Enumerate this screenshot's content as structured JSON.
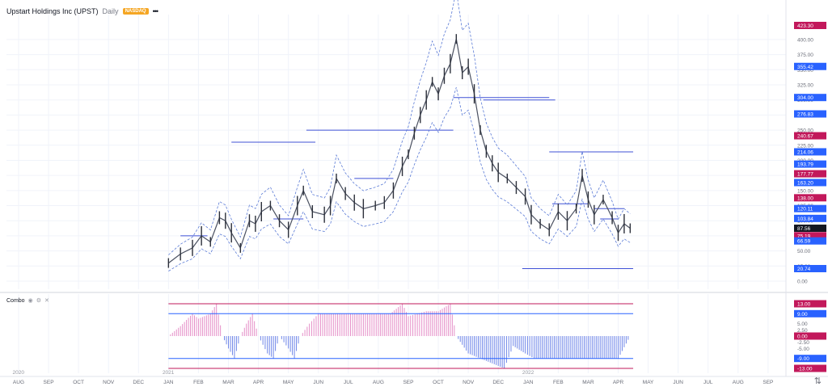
{
  "header": {
    "title": "Upstart Holdings Inc (UPST)",
    "timeframe": "Daily",
    "exchange": "NASDAQ",
    "more": "•••"
  },
  "indicator": {
    "name": "Combo",
    "icons": [
      "eye-icon",
      "gear-icon",
      "close-icon"
    ]
  },
  "chart_data": {
    "type": "line",
    "price_axis_ticks": [
      "400.00",
      "375.00",
      "350.00",
      "325.00",
      "300.00",
      "275.00",
      "250.00",
      "225.00",
      "200.00",
      "175.00",
      "150.00",
      "125.00",
      "100.00",
      "75.00",
      "50.00",
      "25.00",
      "0.00"
    ],
    "price_tick_values": [
      400,
      375,
      350,
      325,
      300,
      275,
      250,
      225,
      200,
      175,
      150,
      125,
      100,
      75,
      50,
      25,
      0
    ],
    "price_ylim": [
      0,
      423.3
    ],
    "price_badges": [
      {
        "label": "423.30",
        "value": 423.3,
        "color": "#c2185b"
      },
      {
        "label": "355.42",
        "value": 355.42,
        "color": "#2962ff"
      },
      {
        "label": "304.00",
        "value": 304.0,
        "color": "#2962ff"
      },
      {
        "label": "276.83",
        "value": 276.83,
        "color": "#2962ff"
      },
      {
        "label": "240.67",
        "value": 240.67,
        "color": "#c2185b"
      },
      {
        "label": "214.06",
        "value": 214.06,
        "color": "#2962ff"
      },
      {
        "label": "193.79",
        "value": 193.79,
        "color": "#2962ff"
      },
      {
        "label": "177.77",
        "value": 177.77,
        "color": "#c2185b"
      },
      {
        "label": "163.20",
        "value": 163.2,
        "color": "#2962ff"
      },
      {
        "label": "138.00",
        "value": 138.0,
        "color": "#c2185b"
      },
      {
        "label": "120.11",
        "value": 120.11,
        "color": "#2962ff"
      },
      {
        "label": "103.84",
        "value": 103.84,
        "color": "#2962ff"
      },
      {
        "label": "87.56",
        "value": 87.56,
        "color": "#131722"
      },
      {
        "label": "75.19",
        "value": 75.19,
        "color": "#c2185b"
      },
      {
        "label": "66.59",
        "value": 66.59,
        "color": "#2962ff"
      },
      {
        "label": "20.74",
        "value": 20.74,
        "color": "#2962ff"
      }
    ],
    "indicator_axis_ticks": [
      "13.00",
      "9.00",
      "5.00",
      "2.50",
      "0.00",
      "-2.50",
      "-5.00",
      "-9.00",
      "-13.00"
    ],
    "indicator_tick_values": [
      13,
      9,
      5,
      2.5,
      0,
      -2.5,
      -5,
      -9,
      -13
    ],
    "indicator_ylim": [
      -13,
      13
    ],
    "indicator_badges": [
      {
        "label": "13.00",
        "value": 13,
        "color": "#c2185b"
      },
      {
        "label": "9.00",
        "value": 9,
        "color": "#2962ff"
      },
      {
        "label": "0.00",
        "value": 0,
        "color": "#c2185b"
      },
      {
        "label": "-9.00",
        "value": -9,
        "color": "#2962ff"
      },
      {
        "label": "-13.00",
        "value": -13,
        "color": "#c2185b"
      }
    ],
    "time_axis": [
      "AUG",
      "SEP",
      "OCT",
      "NOV",
      "DEC",
      "JAN",
      "FEB",
      "MAR",
      "APR",
      "MAY",
      "JUN",
      "JUL",
      "AUG",
      "SEP",
      "OCT",
      "NOV",
      "DEC",
      "JAN",
      "FEB",
      "MAR",
      "APR",
      "MAY",
      "JUN",
      "JUL",
      "AUG",
      "SEP"
    ],
    "year_labels": [
      {
        "label": "2020",
        "after": 0
      },
      {
        "label": "2021",
        "after": 5
      },
      {
        "label": "2022",
        "after": 17
      }
    ],
    "price_series": {
      "name": "UPST",
      "points": [
        [
          5,
          30
        ],
        [
          5.4,
          45
        ],
        [
          5.8,
          55
        ],
        [
          6.1,
          75
        ],
        [
          6.4,
          65
        ],
        [
          6.7,
          105
        ],
        [
          6.9,
          100
        ],
        [
          7.1,
          80
        ],
        [
          7.4,
          55
        ],
        [
          7.7,
          100
        ],
        [
          7.9,
          95
        ],
        [
          8.1,
          115
        ],
        [
          8.4,
          125
        ],
        [
          8.7,
          100
        ],
        [
          9.0,
          85
        ],
        [
          9.3,
          125
        ],
        [
          9.5,
          150
        ],
        [
          9.8,
          115
        ],
        [
          10.2,
          110
        ],
        [
          10.4,
          125
        ],
        [
          10.6,
          170
        ],
        [
          10.9,
          145
        ],
        [
          11.2,
          130
        ],
        [
          11.5,
          120
        ],
        [
          11.9,
          125
        ],
        [
          12.2,
          130
        ],
        [
          12.5,
          150
        ],
        [
          12.8,
          190
        ],
        [
          13.0,
          210
        ],
        [
          13.2,
          245
        ],
        [
          13.4,
          275
        ],
        [
          13.6,
          300
        ],
        [
          13.8,
          330
        ],
        [
          14.0,
          310
        ],
        [
          14.2,
          340
        ],
        [
          14.4,
          360
        ],
        [
          14.6,
          401
        ],
        [
          14.8,
          345
        ],
        [
          15.0,
          355
        ],
        [
          15.2,
          310
        ],
        [
          15.4,
          250
        ],
        [
          15.6,
          215
        ],
        [
          15.8,
          195
        ],
        [
          16.0,
          180
        ],
        [
          16.3,
          170
        ],
        [
          16.6,
          155
        ],
        [
          16.9,
          140
        ],
        [
          17.1,
          110
        ],
        [
          17.4,
          95
        ],
        [
          17.7,
          85
        ],
        [
          18.0,
          115
        ],
        [
          18.3,
          100
        ],
        [
          18.6,
          120
        ],
        [
          18.8,
          175
        ],
        [
          19.0,
          135
        ],
        [
          19.2,
          110
        ],
        [
          19.5,
          135
        ],
        [
          19.8,
          105
        ],
        [
          20.0,
          80
        ],
        [
          20.2,
          95
        ],
        [
          20.4,
          87.56
        ]
      ]
    },
    "horizontal_levels": [
      {
        "x0": 5.4,
        "x1": 6.3,
        "y": 75
      },
      {
        "x0": 7.1,
        "x1": 9.9,
        "y": 230
      },
      {
        "x0": 9.6,
        "x1": 14.5,
        "y": 250
      },
      {
        "x0": 11.2,
        "x1": 12.5,
        "y": 170
      },
      {
        "x0": 8.5,
        "x1": 9.5,
        "y": 103
      },
      {
        "x0": 14.5,
        "x1": 17.7,
        "y": 304
      },
      {
        "x0": 15.5,
        "x1": 17.9,
        "y": 300
      },
      {
        "x0": 17.7,
        "x1": 20.5,
        "y": 214
      },
      {
        "x0": 16.8,
        "x1": 20.5,
        "y": 20.7
      },
      {
        "x0": 17.8,
        "x1": 19.0,
        "y": 128
      },
      {
        "x0": 19.4,
        "x1": 20.0,
        "y": 103
      },
      {
        "x0": 19.2,
        "x1": 20.2,
        "y": 120
      }
    ],
    "indicator_series": {
      "name": "Combo",
      "points": [
        [
          5.0,
          0
        ],
        [
          5.4,
          4
        ],
        [
          5.8,
          9
        ],
        [
          6.0,
          7
        ],
        [
          6.4,
          9
        ],
        [
          6.6,
          13
        ],
        [
          6.8,
          0
        ],
        [
          7.0,
          -5
        ],
        [
          7.2,
          -9
        ],
        [
          7.4,
          0
        ],
        [
          7.6,
          5
        ],
        [
          7.8,
          9
        ],
        [
          8.0,
          0
        ],
        [
          8.3,
          -7
        ],
        [
          8.5,
          -9
        ],
        [
          8.7,
          0
        ],
        [
          9.0,
          -5
        ],
        [
          9.2,
          -9
        ],
        [
          9.4,
          0
        ],
        [
          9.7,
          5
        ],
        [
          10.0,
          9
        ],
        [
          10.5,
          9
        ],
        [
          11.0,
          9
        ],
        [
          11.5,
          9
        ],
        [
          12.0,
          9
        ],
        [
          12.4,
          9
        ],
        [
          12.8,
          13
        ],
        [
          13.0,
          8
        ],
        [
          13.3,
          9
        ],
        [
          13.6,
          10
        ],
        [
          14.0,
          10
        ],
        [
          14.4,
          13
        ],
        [
          14.6,
          0
        ],
        [
          15.0,
          -7
        ],
        [
          15.4,
          -9
        ],
        [
          15.8,
          -11
        ],
        [
          16.2,
          -13
        ],
        [
          16.5,
          -4
        ],
        [
          16.9,
          -7
        ],
        [
          17.2,
          -9
        ],
        [
          17.6,
          -9
        ],
        [
          18.0,
          -9
        ],
        [
          18.4,
          -9
        ],
        [
          18.8,
          -9
        ],
        [
          19.2,
          -9
        ],
        [
          19.6,
          -9
        ],
        [
          20.0,
          -9
        ],
        [
          20.4,
          0
        ]
      ]
    }
  }
}
